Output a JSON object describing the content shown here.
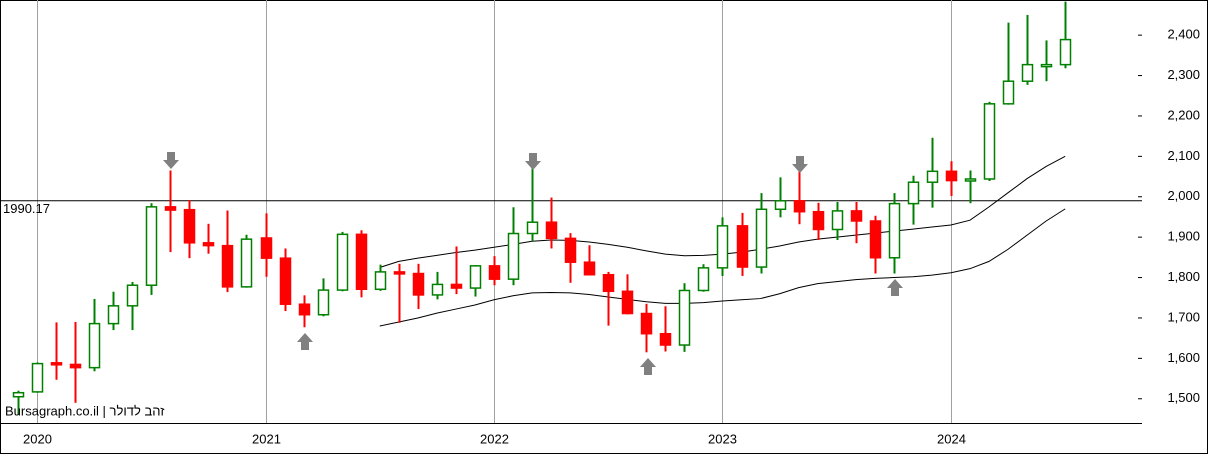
{
  "chart_data": {
    "type": "candlestick",
    "watermark": "Bursagraph.co.il | זהב לדולר",
    "categories": [
      null,
      "2020",
      null,
      null,
      null,
      null,
      null,
      null,
      null,
      null,
      null,
      null,
      null,
      "2021",
      null,
      null,
      null,
      null,
      null,
      null,
      null,
      null,
      null,
      null,
      null,
      "2022",
      null,
      null,
      null,
      null,
      null,
      null,
      null,
      null,
      null,
      null,
      null,
      "2023",
      null,
      null,
      null,
      null,
      null,
      null,
      null,
      null,
      null,
      null,
      null,
      "2024",
      null,
      null,
      null,
      null,
      null,
      null
    ],
    "open": [
      1505,
      1517,
      1589,
      1585,
      1577,
      1686,
      1730,
      1781,
      1975,
      1968,
      1886,
      1879,
      1777,
      1898,
      1848,
      1734,
      1708,
      1769,
      1907,
      1771,
      1814,
      1810,
      1757,
      1783,
      1774,
      1829,
      1796,
      1909,
      1937,
      1897,
      1838,
      1807,
      1766,
      1711,
      1661,
      1633,
      1768,
      1824,
      1928,
      1826,
      1969,
      1990,
      1963,
      1919,
      1965,
      1940,
      1849,
      1983,
      2036,
      2063,
      2040,
      2044,
      2230,
      2286,
      2327,
      2327
    ],
    "high": [
      1520,
      1590,
      1689,
      1690,
      1747,
      1765,
      1789,
      1984,
      2065,
      1992,
      1933,
      1966,
      1906,
      1959,
      1872,
      1756,
      1798,
      1913,
      1917,
      1832,
      1834,
      1834,
      1814,
      1877,
      1831,
      1853,
      1974,
      2070,
      1998,
      1910,
      1880,
      1814,
      1808,
      1735,
      1729,
      1786,
      1833,
      1949,
      1960,
      2009,
      2048,
      2079,
      1985,
      1987,
      1987,
      1953,
      2009,
      2052,
      2146,
      2088,
      2065,
      2235,
      2431,
      2450,
      2387,
      2483
    ],
    "low": [
      1460,
      1515,
      1547,
      1490,
      1568,
      1670,
      1670,
      1757,
      1863,
      1848,
      1859,
      1764,
      1775,
      1802,
      1717,
      1677,
      1704,
      1766,
      1751,
      1767,
      1688,
      1722,
      1746,
      1759,
      1753,
      1781,
      1781,
      1890,
      1872,
      1787,
      1805,
      1681,
      1709,
      1615,
      1617,
      1616,
      1765,
      1804,
      1804,
      1810,
      1949,
      1932,
      1893,
      1893,
      1885,
      1810,
      1810,
      1931,
      1973,
      2002,
      1984,
      2039,
      2228,
      2277,
      2286,
      2318
    ],
    "close": [
      1515,
      1587,
      1585,
      1577,
      1686,
      1730,
      1781,
      1975,
      1967,
      1886,
      1879,
      1777,
      1895,
      1848,
      1734,
      1708,
      1769,
      1907,
      1771,
      1814,
      1810,
      1757,
      1783,
      1774,
      1829,
      1796,
      1909,
      1937,
      1897,
      1838,
      1807,
      1766,
      1711,
      1661,
      1633,
      1768,
      1824,
      1928,
      1826,
      1969,
      1990,
      1963,
      1919,
      1965,
      1940,
      1849,
      1983,
      2036,
      2063,
      2040,
      2044,
      2230,
      2286,
      2327,
      2327,
      2389
    ],
    "up_color": "#008000",
    "down_color": "#ff0000",
    "bands": [
      {
        "color": "#000000",
        "values": [
          null,
          null,
          null,
          null,
          null,
          null,
          null,
          null,
          null,
          null,
          null,
          null,
          null,
          null,
          null,
          null,
          null,
          null,
          null,
          1825,
          1840,
          1848,
          1855,
          1862,
          1868,
          1875,
          1882,
          1890,
          1893,
          1892,
          1888,
          1882,
          1875,
          1866,
          1858,
          1854,
          1855,
          1858,
          1863,
          1870,
          1878,
          1888,
          1895,
          1900,
          1905,
          1910,
          1915,
          1920,
          1925,
          1930,
          1942,
          1975,
          2010,
          2045,
          2075,
          2100
        ]
      },
      {
        "color": "#000000",
        "values": [
          null,
          null,
          null,
          null,
          null,
          null,
          null,
          null,
          null,
          null,
          null,
          null,
          null,
          null,
          null,
          null,
          null,
          null,
          null,
          1680,
          1690,
          1700,
          1712,
          1722,
          1732,
          1745,
          1755,
          1762,
          1763,
          1762,
          1758,
          1752,
          1746,
          1740,
          1736,
          1736,
          1738,
          1742,
          1745,
          1748,
          1760,
          1775,
          1785,
          1790,
          1795,
          1798,
          1800,
          1802,
          1806,
          1812,
          1822,
          1840,
          1870,
          1905,
          1940,
          1970
        ]
      }
    ],
    "reference_line": 1990.17,
    "ylim": [
      1440,
      2487
    ],
    "yticks": [
      {
        "value": 1500,
        "label": "1,500"
      },
      {
        "value": 1600,
        "label": "1,600"
      },
      {
        "value": 1700,
        "label": "1,700"
      },
      {
        "value": 1800,
        "label": "1,800"
      },
      {
        "value": 1900,
        "label": "1,900"
      },
      {
        "value": 2000,
        "label": "2,000"
      },
      {
        "value": 2100,
        "label": "2,100"
      },
      {
        "value": 2200,
        "label": "2,200"
      },
      {
        "value": 2300,
        "label": "2,300"
      },
      {
        "value": 2400,
        "label": "2,400"
      }
    ]
  }
}
